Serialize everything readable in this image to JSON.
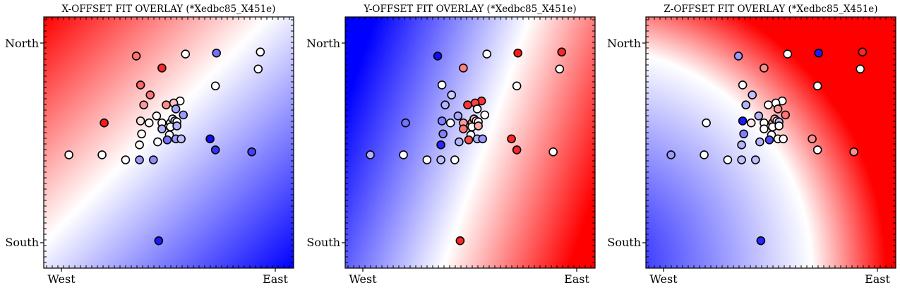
{
  "chart_data": [
    {
      "type": "scatter",
      "title": "X-OFFSET FIT OVERLAY (*Xedbc85_X451e)",
      "x_tick_labels": [
        "West",
        "East"
      ],
      "y_tick_labels": [
        "North",
        "South"
      ],
      "xlim": [
        -1,
        1
      ],
      "ylim": [
        -1,
        1
      ],
      "background": "diverging bwr gradient: red toward upper-left, blue toward lower-right",
      "colormap": [
        "#0000ff",
        "#ffffff",
        "#ff0000"
      ],
      "points": [
        {
          "x": -0.93,
          "y": -0.12,
          "v": 0.0
        },
        {
          "x": -0.6,
          "y": 0.2,
          "v": 0.9
        },
        {
          "x": -0.3,
          "y": 0.87,
          "v": 0.55
        },
        {
          "x": 0.16,
          "y": 0.89,
          "v": 0.0
        },
        {
          "x": 0.45,
          "y": 0.9,
          "v": -0.55
        },
        {
          "x": 0.86,
          "y": 0.91,
          "v": 0.0
        },
        {
          "x": 0.84,
          "y": 0.74,
          "v": 0.0
        },
        {
          "x": -0.06,
          "y": 0.75,
          "v": 0.85
        },
        {
          "x": -0.26,
          "y": 0.58,
          "v": 0.6
        },
        {
          "x": -0.23,
          "y": 0.38,
          "v": 0.4
        },
        {
          "x": 0.11,
          "y": 0.42,
          "v": 0.0
        },
        {
          "x": 0.44,
          "y": 0.57,
          "v": 0.0
        },
        {
          "x": -0.17,
          "y": 0.48,
          "v": 0.55
        },
        {
          "x": -0.02,
          "y": 0.38,
          "v": 0.45
        },
        {
          "x": 0.05,
          "y": 0.4,
          "v": 0.25
        },
        {
          "x": 0.07,
          "y": 0.34,
          "v": -0.35
        },
        {
          "x": 0.14,
          "y": 0.28,
          "v": -0.4
        },
        {
          "x": -0.11,
          "y": 0.27,
          "v": 0.0
        },
        {
          "x": -0.26,
          "y": 0.22,
          "v": 0.1
        },
        {
          "x": -0.18,
          "y": 0.2,
          "v": 0.0
        },
        {
          "x": -0.06,
          "y": 0.2,
          "v": 0.0
        },
        {
          "x": 0.02,
          "y": 0.2,
          "v": 0.0
        },
        {
          "x": 0.04,
          "y": 0.24,
          "v": 0.0
        },
        {
          "x": 0.06,
          "y": 0.22,
          "v": -0.25
        },
        {
          "x": 0.08,
          "y": 0.21,
          "v": 0.0
        },
        {
          "x": 0.02,
          "y": 0.16,
          "v": 0.0
        },
        {
          "x": -0.06,
          "y": 0.14,
          "v": -0.3
        },
        {
          "x": -0.25,
          "y": 0.09,
          "v": 0.0
        },
        {
          "x": 0.01,
          "y": 0.08,
          "v": 0.0
        },
        {
          "x": 0.08,
          "y": 0.17,
          "v": -0.3
        },
        {
          "x": 0.07,
          "y": 0.04,
          "v": -0.4
        },
        {
          "x": -0.01,
          "y": 0.03,
          "v": -0.55
        },
        {
          "x": -0.1,
          "y": 0.01,
          "v": 0.0
        },
        {
          "x": -0.27,
          "y": -0.02,
          "v": 0.0
        },
        {
          "x": 0.12,
          "y": 0.04,
          "v": -0.25
        },
        {
          "x": 0.39,
          "y": 0.04,
          "v": -0.95
        },
        {
          "x": -0.62,
          "y": -0.12,
          "v": 0.0
        },
        {
          "x": 0.44,
          "y": -0.07,
          "v": -0.8
        },
        {
          "x": -0.4,
          "y": -0.17,
          "v": 0.0
        },
        {
          "x": -0.27,
          "y": -0.17,
          "v": -0.4
        },
        {
          "x": -0.14,
          "y": -0.17,
          "v": -0.45
        },
        {
          "x": 0.78,
          "y": -0.09,
          "v": -0.75
        },
        {
          "x": -0.09,
          "y": -0.98,
          "v": -0.9
        }
      ]
    },
    {
      "type": "scatter",
      "title": "Y-OFFSET FIT OVERLAY (*Xedbc85_X451e)",
      "x_tick_labels": [
        "West",
        "East"
      ],
      "y_tick_labels": [
        "North",
        "South"
      ],
      "xlim": [
        -1,
        1
      ],
      "ylim": [
        -1,
        1
      ],
      "background": "diverging bwr gradient: blue toward left, red toward right",
      "colormap": [
        "#0000ff",
        "#ffffff",
        "#ff0000"
      ],
      "points": [
        {
          "x": -0.93,
          "y": -0.12,
          "v": -0.3
        },
        {
          "x": -0.6,
          "y": 0.2,
          "v": -0.55
        },
        {
          "x": -0.3,
          "y": 0.87,
          "v": -0.95
        },
        {
          "x": 0.16,
          "y": 0.89,
          "v": 0.0
        },
        {
          "x": 0.45,
          "y": 0.9,
          "v": 0.9
        },
        {
          "x": 0.86,
          "y": 0.91,
          "v": 0.85
        },
        {
          "x": 0.84,
          "y": 0.74,
          "v": 0.0
        },
        {
          "x": -0.06,
          "y": 0.75,
          "v": 0.5
        },
        {
          "x": -0.26,
          "y": 0.58,
          "v": 0.0
        },
        {
          "x": -0.23,
          "y": 0.38,
          "v": -0.3
        },
        {
          "x": 0.11,
          "y": 0.42,
          "v": 0.8
        },
        {
          "x": 0.44,
          "y": 0.57,
          "v": 0.0
        },
        {
          "x": -0.17,
          "y": 0.48,
          "v": -0.2
        },
        {
          "x": -0.02,
          "y": 0.38,
          "v": 0.8
        },
        {
          "x": 0.05,
          "y": 0.4,
          "v": 0.75
        },
        {
          "x": 0.07,
          "y": 0.34,
          "v": 0.0
        },
        {
          "x": 0.14,
          "y": 0.28,
          "v": 0.0
        },
        {
          "x": -0.11,
          "y": 0.27,
          "v": -0.35
        },
        {
          "x": -0.26,
          "y": 0.22,
          "v": -0.5
        },
        {
          "x": -0.18,
          "y": 0.2,
          "v": 0.0
        },
        {
          "x": -0.06,
          "y": 0.2,
          "v": 0.4
        },
        {
          "x": 0.02,
          "y": 0.2,
          "v": 0.45
        },
        {
          "x": 0.04,
          "y": 0.24,
          "v": 0.3
        },
        {
          "x": 0.06,
          "y": 0.22,
          "v": 0.0
        },
        {
          "x": 0.08,
          "y": 0.21,
          "v": 0.0
        },
        {
          "x": 0.02,
          "y": 0.16,
          "v": 0.0
        },
        {
          "x": -0.06,
          "y": 0.14,
          "v": 0.55
        },
        {
          "x": -0.25,
          "y": 0.09,
          "v": -0.5
        },
        {
          "x": 0.01,
          "y": 0.08,
          "v": 0.0
        },
        {
          "x": 0.08,
          "y": 0.17,
          "v": 0.35
        },
        {
          "x": 0.07,
          "y": 0.04,
          "v": -0.3
        },
        {
          "x": -0.01,
          "y": 0.03,
          "v": 0.7
        },
        {
          "x": -0.1,
          "y": 0.01,
          "v": -0.3
        },
        {
          "x": -0.27,
          "y": -0.02,
          "v": -0.85
        },
        {
          "x": 0.12,
          "y": 0.04,
          "v": -0.4
        },
        {
          "x": 0.39,
          "y": 0.04,
          "v": 0.85
        },
        {
          "x": -0.62,
          "y": -0.12,
          "v": 0.0
        },
        {
          "x": 0.44,
          "y": -0.07,
          "v": 0.85
        },
        {
          "x": -0.4,
          "y": -0.17,
          "v": 0.0
        },
        {
          "x": -0.27,
          "y": -0.17,
          "v": -0.25
        },
        {
          "x": -0.14,
          "y": -0.17,
          "v": 0.0
        },
        {
          "x": 0.78,
          "y": -0.09,
          "v": 0.0
        },
        {
          "x": -0.09,
          "y": -0.98,
          "v": 0.85
        }
      ]
    },
    {
      "type": "scatter",
      "title": "Z-OFFSET FIT OVERLAY (*Xedbc85_X451e)",
      "x_tick_labels": [
        "West",
        "East"
      ],
      "y_tick_labels": [
        "North",
        "South"
      ],
      "xlim": [
        -1,
        1
      ],
      "ylim": [
        -1,
        1
      ],
      "background": "diverging bwr gradient: blue toward lower-left, red toward right edge",
      "colormap": [
        "#0000ff",
        "#ffffff",
        "#ff0000"
      ],
      "points": [
        {
          "x": -0.93,
          "y": -0.12,
          "v": -0.4
        },
        {
          "x": -0.6,
          "y": 0.2,
          "v": 0.0
        },
        {
          "x": -0.3,
          "y": 0.87,
          "v": -0.4
        },
        {
          "x": 0.16,
          "y": 0.89,
          "v": 0.0
        },
        {
          "x": 0.45,
          "y": 0.9,
          "v": -0.9
        },
        {
          "x": 0.86,
          "y": 0.91,
          "v": 0.85
        },
        {
          "x": 0.84,
          "y": 0.74,
          "v": 0.0
        },
        {
          "x": -0.06,
          "y": 0.75,
          "v": 0.45
        },
        {
          "x": -0.26,
          "y": 0.58,
          "v": 0.0
        },
        {
          "x": -0.23,
          "y": 0.38,
          "v": -0.3
        },
        {
          "x": 0.11,
          "y": 0.42,
          "v": 0.0
        },
        {
          "x": 0.44,
          "y": 0.57,
          "v": 0.0
        },
        {
          "x": -0.17,
          "y": 0.48,
          "v": -0.25
        },
        {
          "x": -0.02,
          "y": 0.38,
          "v": 0.0
        },
        {
          "x": 0.05,
          "y": 0.4,
          "v": 0.0
        },
        {
          "x": 0.07,
          "y": 0.34,
          "v": 0.4
        },
        {
          "x": 0.14,
          "y": 0.28,
          "v": 0.55
        },
        {
          "x": -0.11,
          "y": 0.27,
          "v": -0.3
        },
        {
          "x": -0.26,
          "y": 0.22,
          "v": -0.9
        },
        {
          "x": -0.18,
          "y": 0.2,
          "v": 0.1
        },
        {
          "x": -0.06,
          "y": 0.2,
          "v": 0.0
        },
        {
          "x": 0.02,
          "y": 0.2,
          "v": 0.4
        },
        {
          "x": 0.04,
          "y": 0.24,
          "v": 0.3
        },
        {
          "x": 0.06,
          "y": 0.22,
          "v": 0.0
        },
        {
          "x": 0.08,
          "y": 0.21,
          "v": -0.25
        },
        {
          "x": 0.02,
          "y": 0.16,
          "v": 0.0
        },
        {
          "x": -0.06,
          "y": 0.14,
          "v": 0.0
        },
        {
          "x": -0.25,
          "y": 0.09,
          "v": -0.5
        },
        {
          "x": 0.01,
          "y": 0.08,
          "v": 0.0
        },
        {
          "x": 0.08,
          "y": 0.17,
          "v": 0.0
        },
        {
          "x": 0.07,
          "y": 0.04,
          "v": 0.0
        },
        {
          "x": -0.01,
          "y": 0.03,
          "v": -0.7
        },
        {
          "x": -0.1,
          "y": 0.01,
          "v": -0.3
        },
        {
          "x": -0.27,
          "y": -0.02,
          "v": -0.3
        },
        {
          "x": 0.12,
          "y": 0.04,
          "v": 0.0
        },
        {
          "x": 0.39,
          "y": 0.04,
          "v": 0.45
        },
        {
          "x": -0.62,
          "y": -0.12,
          "v": 0.0
        },
        {
          "x": 0.44,
          "y": -0.07,
          "v": 0.0
        },
        {
          "x": -0.4,
          "y": -0.17,
          "v": 0.0
        },
        {
          "x": -0.27,
          "y": -0.17,
          "v": -0.25
        },
        {
          "x": -0.14,
          "y": -0.17,
          "v": -0.25
        },
        {
          "x": 0.78,
          "y": -0.09,
          "v": 0.45
        },
        {
          "x": -0.09,
          "y": -0.98,
          "v": -0.85
        }
      ]
    }
  ]
}
